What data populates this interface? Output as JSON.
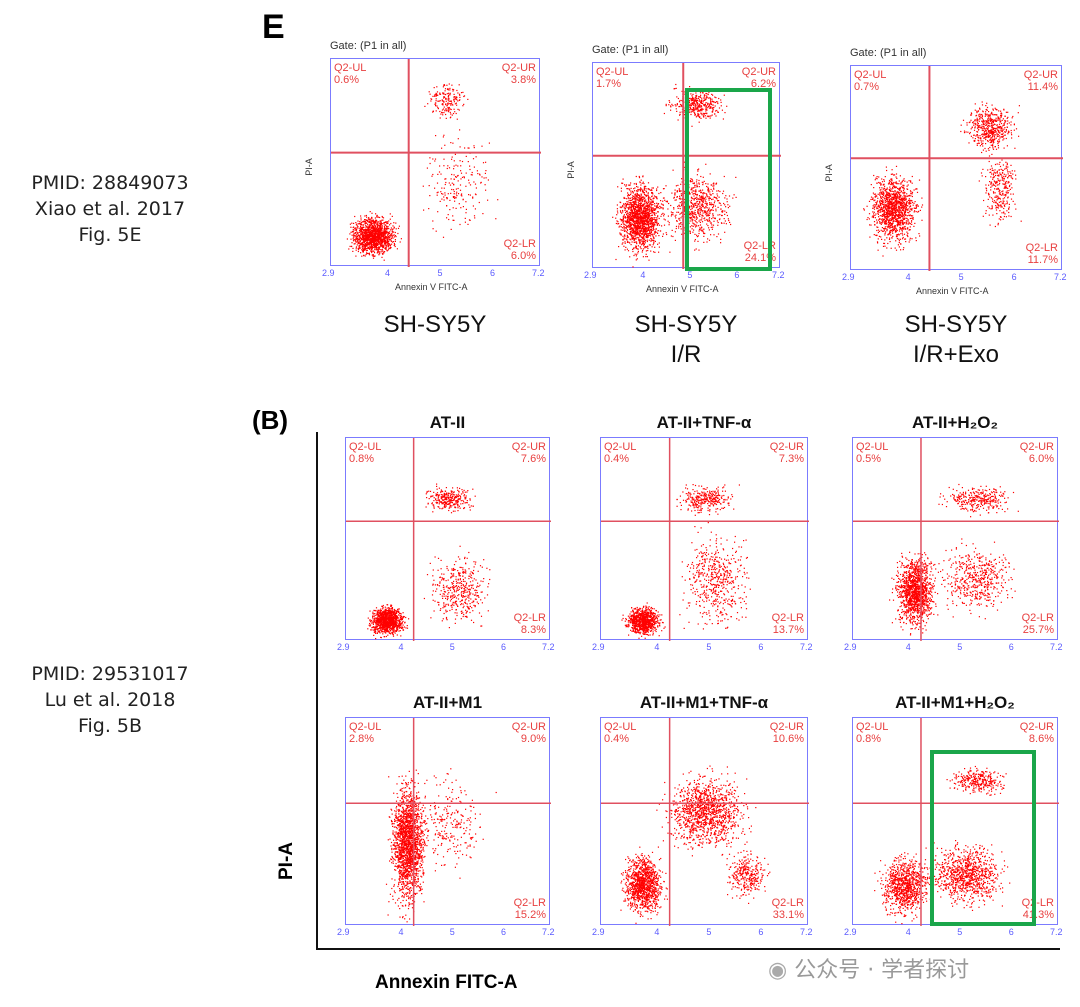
{
  "panel_e": {
    "letter": "E",
    "citation": [
      "PMID: 28849073",
      "Xiao et al. 2017",
      "Fig. 5E"
    ]
  },
  "panel_b": {
    "letter": "(B)",
    "citation": [
      "PMID: 29531017",
      "Lu et al. 2018",
      "Fig. 5B"
    ],
    "ylabel": "PI-A",
    "xlabel": "Annexin FITC-A"
  },
  "watermark": "公众号 · 学者探讨",
  "colors": {
    "dots": "#ff0000",
    "frame": "#7b7bff",
    "highlight": "#1aa64a"
  },
  "chart_data": [
    {
      "type": "scatter",
      "panel": "E",
      "title": "SH-SY5Y",
      "caption": [
        "SH-SY5Y",
        ""
      ],
      "gate": "Gate: (P1 in all)",
      "xlabel": "Annexin V FITC-A",
      "ylabel": "PI-A",
      "xticks": [
        "2.9",
        "4",
        "5",
        "6",
        "7.2"
      ],
      "quadrants": {
        "Q2-UL": "0.6%",
        "Q2-UR": "3.8%",
        "Q2-LR": "6.0%"
      }
    },
    {
      "type": "scatter",
      "panel": "E",
      "title": "SH-SY5Y I/R",
      "caption": [
        "SH-SY5Y",
        "I/R"
      ],
      "gate": "Gate: (P1 in all)",
      "xlabel": "Annexin V FITC-A",
      "ylabel": "PI-A",
      "xticks": [
        "2.9",
        "4",
        "5",
        "6",
        "7.2"
      ],
      "quadrants": {
        "Q2-UL": "1.7%",
        "Q2-UR": "6.2%",
        "Q2-LR": "24.1%"
      },
      "highlight": true
    },
    {
      "type": "scatter",
      "panel": "E",
      "title": "SH-SY5Y I/R+Exo",
      "caption": [
        "SH-SY5Y",
        "I/R+Exo"
      ],
      "gate": "Gate: (P1 in all)",
      "xlabel": "Annexin V FITC-A",
      "ylabel": "PI-A",
      "xticks": [
        "2.9",
        "4",
        "5",
        "6",
        "7.2"
      ],
      "quadrants": {
        "Q2-UL": "0.7%",
        "Q2-UR": "11.4%",
        "Q2-LR": "11.7%"
      }
    },
    {
      "type": "scatter",
      "panel": "B",
      "title": "AT-II",
      "xticks": [
        "2.9",
        "4",
        "5",
        "6",
        "7.2"
      ],
      "quadrants": {
        "Q2-UL": "0.8%",
        "Q2-UR": "7.6%",
        "Q2-LR": "8.3%"
      }
    },
    {
      "type": "scatter",
      "panel": "B",
      "title": "AT-II+TNF-α",
      "xticks": [
        "2.9",
        "4",
        "5",
        "6",
        "7.2"
      ],
      "quadrants": {
        "Q2-UL": "0.4%",
        "Q2-UR": "7.3%",
        "Q2-LR": "13.7%"
      }
    },
    {
      "type": "scatter",
      "panel": "B",
      "title": "AT-II+H₂O₂",
      "xticks": [
        "2.9",
        "4",
        "5",
        "6",
        "7.2"
      ],
      "quadrants": {
        "Q2-UL": "0.5%",
        "Q2-UR": "6.0%",
        "Q2-LR": "25.7%"
      }
    },
    {
      "type": "scatter",
      "panel": "B",
      "title": "AT-II+M1",
      "xticks": [
        "2.9",
        "4",
        "5",
        "6",
        "7.2"
      ],
      "quadrants": {
        "Q2-UL": "2.8%",
        "Q2-UR": "9.0%",
        "Q2-LR": "15.2%"
      }
    },
    {
      "type": "scatter",
      "panel": "B",
      "title": "AT-II+M1+TNF-α",
      "xticks": [
        "2.9",
        "4",
        "5",
        "6",
        "7.2"
      ],
      "quadrants": {
        "Q2-UL": "0.4%",
        "Q2-UR": "10.6%",
        "Q2-LR": "33.1%"
      }
    },
    {
      "type": "scatter",
      "panel": "B",
      "title": "AT-II+M1+H₂O₂",
      "xticks": [
        "2.9",
        "4",
        "5",
        "6",
        "7.2"
      ],
      "quadrants": {
        "Q2-UL": "0.8%",
        "Q2-UR": "8.6%",
        "Q2-LR": "41.3%"
      },
      "highlight": true
    }
  ]
}
